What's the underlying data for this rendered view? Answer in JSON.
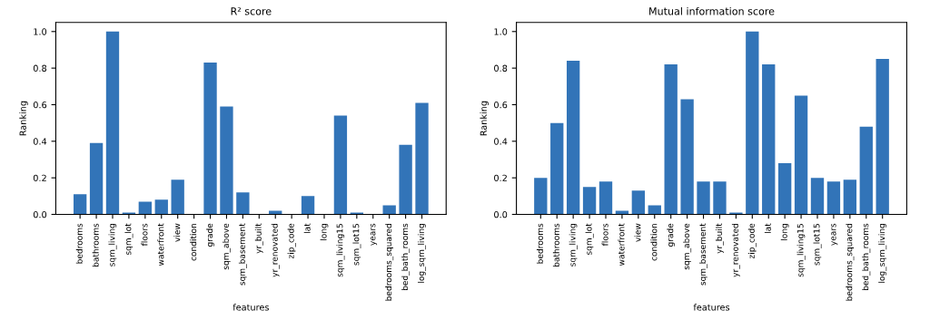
{
  "chart_data": [
    {
      "type": "bar",
      "title": "R² score",
      "xlabel": "features",
      "ylabel": "Ranking",
      "categories": [
        "bedrooms",
        "bathrooms",
        "sqm_living",
        "sqm_lot",
        "floors",
        "waterfront",
        "view",
        "condition",
        "grade",
        "sqm_above",
        "sqm_basement",
        "yr_built",
        "yr_renovated",
        "zip_code",
        "lat",
        "long",
        "sqm_living15",
        "sqm_lot15",
        "years",
        "bedrooms_squared",
        "bed_bath_rooms",
        "log_sqm_living"
      ],
      "values": [
        0.11,
        0.39,
        1.0,
        0.01,
        0.07,
        0.08,
        0.19,
        0.0,
        0.83,
        0.59,
        0.12,
        0.0,
        0.02,
        0.0,
        0.1,
        0.0,
        0.54,
        0.01,
        0.0,
        0.05,
        0.38,
        0.61
      ],
      "color": "#3274b8",
      "ylim": [
        0,
        1.05
      ],
      "yticks": [
        {
          "value": 0,
          "label": "0.0"
        },
        {
          "value": 0.2,
          "label": "0.2"
        },
        {
          "value": 0.4,
          "label": "0.4"
        },
        {
          "value": 0.6,
          "label": "0.6"
        },
        {
          "value": 0.8,
          "label": "0.8"
        },
        {
          "value": 1,
          "label": "1.0"
        }
      ],
      "grid": false
    },
    {
      "type": "bar",
      "title": "Mutual information score",
      "xlabel": "features",
      "ylabel": "Ranking",
      "categories": [
        "bedrooms",
        "bathrooms",
        "sqm_living",
        "sqm_lot",
        "floors",
        "waterfront",
        "view",
        "condition",
        "grade",
        "sqm_above",
        "sqm_basement",
        "yr_built",
        "yr_renovated",
        "zip_code",
        "lat",
        "long",
        "sqm_living15",
        "sqm_lot15",
        "years",
        "bedrooms_squared",
        "bed_bath_rooms",
        "log_sqm_living"
      ],
      "values": [
        0.2,
        0.5,
        0.84,
        0.15,
        0.18,
        0.02,
        0.13,
        0.05,
        0.82,
        0.63,
        0.18,
        0.18,
        0.01,
        1.0,
        0.82,
        0.28,
        0.65,
        0.2,
        0.18,
        0.19,
        0.48,
        0.85
      ],
      "color": "#3274b8",
      "ylim": [
        0,
        1.05
      ],
      "yticks": [
        {
          "value": 0,
          "label": "0.0"
        },
        {
          "value": 0.2,
          "label": "0.2"
        },
        {
          "value": 0.4,
          "label": "0.4"
        },
        {
          "value": 0.6,
          "label": "0.6"
        },
        {
          "value": 0.8,
          "label": "0.8"
        },
        {
          "value": 1,
          "label": "1.0"
        }
      ],
      "grid": false
    }
  ]
}
